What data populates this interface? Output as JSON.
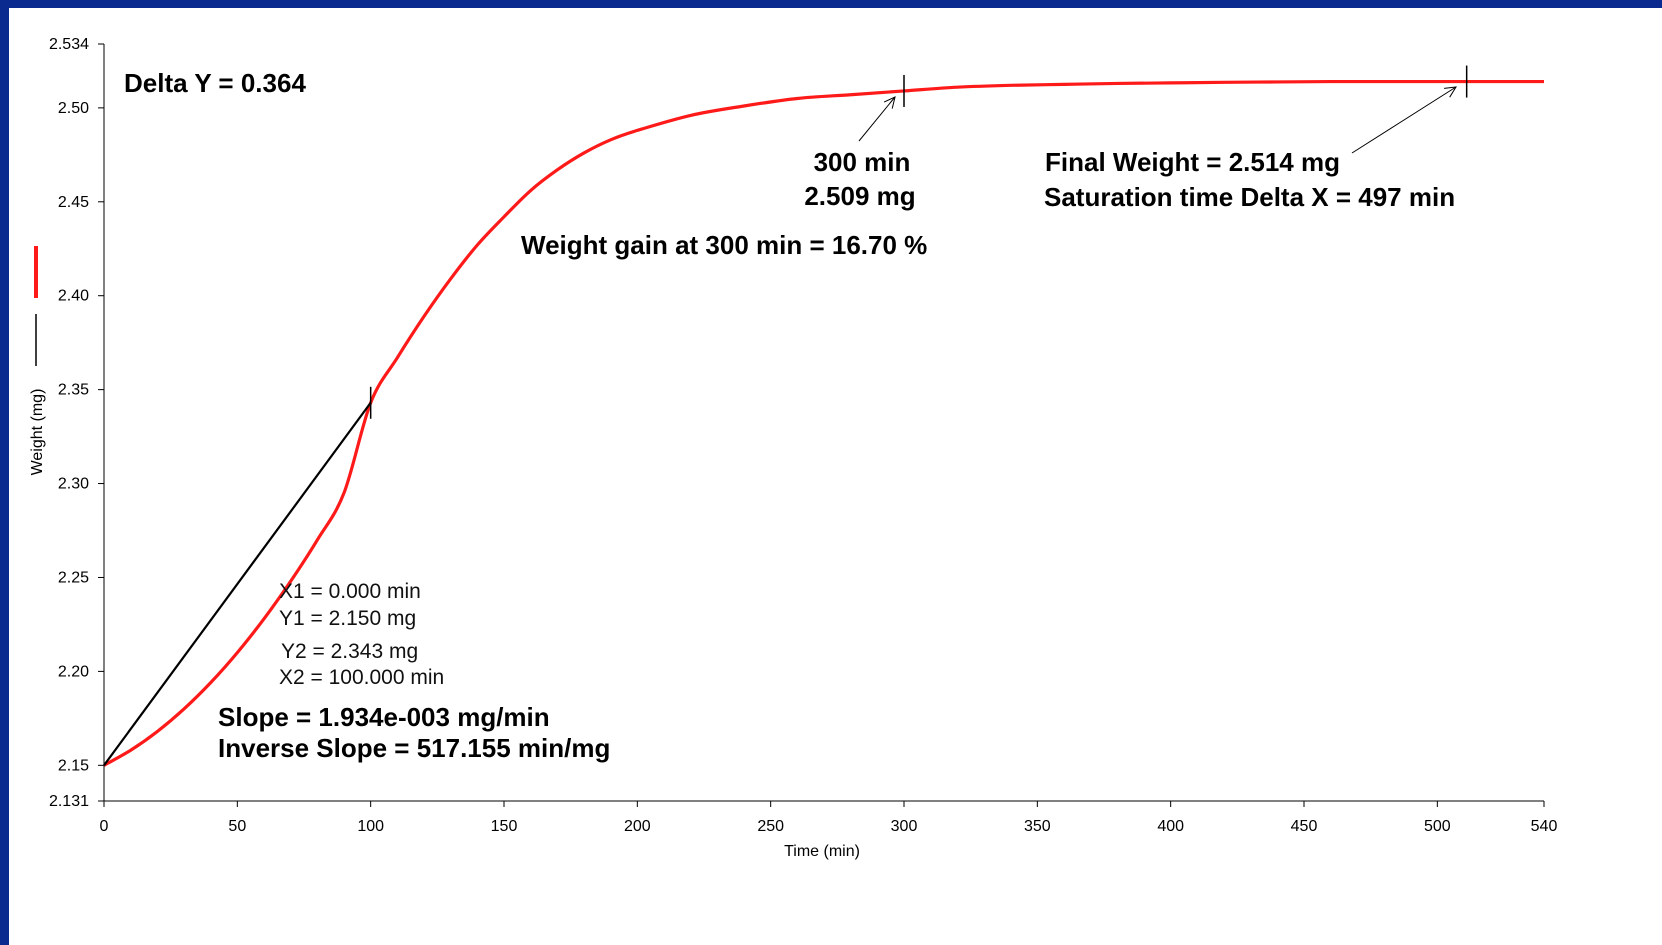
{
  "chart_data": {
    "type": "line",
    "xlabel": "Time (min)",
    "ylabel": "Weight (mg)",
    "xlim": [
      0,
      540
    ],
    "ylim": [
      2.131,
      2.534
    ],
    "x_ticks": [
      0,
      50,
      100,
      150,
      200,
      250,
      300,
      350,
      400,
      450,
      500,
      540
    ],
    "y_ticks": [
      2.131,
      2.15,
      2.2,
      2.25,
      2.3,
      2.35,
      2.4,
      2.45,
      2.5,
      2.534
    ],
    "y_tick_labels": [
      "2.131",
      "2.15",
      "2.20",
      "2.25",
      "2.30",
      "2.35",
      "2.40",
      "2.45",
      "2.50",
      "2.534"
    ],
    "grid": false,
    "series": [
      {
        "color": "#ff1a1a",
        "x": [
          0,
          10,
          20,
          30,
          40,
          50,
          60,
          70,
          80,
          90,
          100,
          110,
          120,
          130,
          140,
          150,
          160,
          170,
          180,
          190,
          200,
          220,
          240,
          260,
          280,
          300,
          320,
          340,
          360,
          380,
          400,
          420,
          440,
          460,
          480,
          500,
          520,
          540
        ],
        "y": [
          2.15,
          2.158,
          2.168,
          2.18,
          2.194,
          2.21,
          2.228,
          2.248,
          2.27,
          2.295,
          2.343,
          2.367,
          2.389,
          2.409,
          2.427,
          2.442,
          2.456,
          2.467,
          2.476,
          2.483,
          2.488,
          2.496,
          2.501,
          2.505,
          2.507,
          2.509,
          2.511,
          2.512,
          2.5125,
          2.513,
          2.5133,
          2.5136,
          2.5138,
          2.514,
          2.514,
          2.514,
          2.514,
          2.514
        ]
      },
      {
        "color": "#000000",
        "x": [
          0,
          100
        ],
        "y": [
          2.15,
          2.343
        ]
      }
    ],
    "markers": [
      {
        "x": 100,
        "y": 2.343
      },
      {
        "x": 300,
        "y": 2.509
      },
      {
        "x": 511,
        "y": 2.514
      }
    ],
    "annotations": {
      "delta_y": "Delta Y = 0.364",
      "marker_time": "300 min",
      "marker_weight": "2.509 mg",
      "final_weight": "Final Weight = 2.514 mg",
      "saturation": "Saturation time Delta X = 497 min",
      "weight_gain": "Weight gain at 300 min = 16.70 %",
      "x1": "X1 = 0.000 min",
      "y1": "Y1 = 2.150 mg",
      "y2": "Y2 = 2.343 mg",
      "x2": "X2 = 100.000 min",
      "slope": "Slope  = 1.934e-003 mg/min",
      "inverse_slope": "Inverse Slope  = 517.155 min/mg"
    },
    "legend": [
      {
        "color": "#ff1a1a"
      },
      {
        "color": "#000000"
      }
    ]
  },
  "colors": {
    "frame": "#0b2a8f",
    "background": "#ffffff",
    "curve": "#ff1a1a",
    "slope_line": "#000000"
  }
}
